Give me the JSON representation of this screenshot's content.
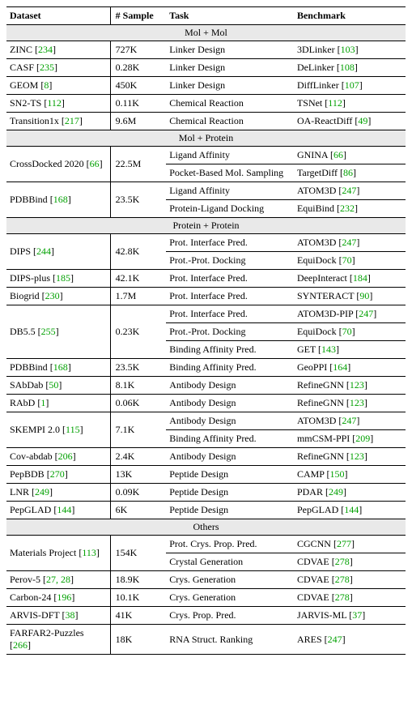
{
  "headers": {
    "dataset": "Dataset",
    "sample": "# Sample",
    "task": "Task",
    "benchmark": "Benchmark"
  },
  "sections": [
    {
      "title": "Mol + Mol",
      "rows": [
        {
          "dataset": "ZINC",
          "dcite": "234",
          "sample": "727K",
          "cells": [
            {
              "task": "Linker Design",
              "bench": "3DLinker",
              "bcite": "103"
            }
          ]
        },
        {
          "dataset": "CASF",
          "dcite": "235",
          "sample": "0.28K",
          "cells": [
            {
              "task": "Linker Design",
              "bench": "DeLinker",
              "bcite": "108"
            }
          ]
        },
        {
          "dataset": "GEOM",
          "dcite": "8",
          "sample": "450K",
          "cells": [
            {
              "task": "Linker Design",
              "bench": "DiffLinker",
              "bcite": "107"
            }
          ]
        },
        {
          "dataset": "SN2-TS",
          "dcite": "112",
          "sample": "0.11K",
          "cells": [
            {
              "task": "Chemical Reaction",
              "bench": "TSNet",
              "bcite": "112"
            }
          ]
        },
        {
          "dataset": "Transition1x",
          "dcite": "217",
          "sample": "9.6M",
          "cells": [
            {
              "task": "Chemical Reaction",
              "bench": "OA-ReactDiff",
              "bcite": "49"
            }
          ]
        }
      ]
    },
    {
      "title": "Mol + Protein",
      "rows": [
        {
          "dataset": "CrossDocked 2020",
          "dcite": "66",
          "sample": "22.5M",
          "cells": [
            {
              "task": "Ligand Affinity",
              "bench": "GNINA",
              "bcite": "66"
            },
            {
              "task": "Pocket-Based Mol. Sampling",
              "bench": "TargetDiff",
              "bcite": "86"
            }
          ]
        },
        {
          "dataset": "PDBBind",
          "dcite": "168",
          "sample": "23.5K",
          "cells": [
            {
              "task": "Ligand Affinity",
              "bench": "ATOM3D",
              "bcite": "247"
            },
            {
              "task": "Protein-Ligand Docking",
              "bench": "EquiBind",
              "bcite": "232"
            }
          ]
        }
      ]
    },
    {
      "title": "Protein + Protein",
      "rows": [
        {
          "dataset": "DIPS",
          "dcite": "244",
          "sample": "42.8K",
          "cells": [
            {
              "task": "Prot. Interface Pred.",
              "bench": "ATOM3D",
              "bcite": "247"
            },
            {
              "task": "Prot.-Prot. Docking",
              "bench": "EquiDock",
              "bcite": "70"
            }
          ]
        },
        {
          "dataset": "DIPS-plus",
          "dcite": "185",
          "sample": "42.1K",
          "cells": [
            {
              "task": "Prot. Interface Pred.",
              "bench": "DeepInteract",
              "bcite": "184"
            }
          ]
        },
        {
          "dataset": "Biogrid",
          "dcite": "230",
          "sample": "1.7M",
          "cells": [
            {
              "task": "Prot. Interface Pred.",
              "bench": "SYNTERACT",
              "bcite": "90"
            }
          ]
        },
        {
          "dataset": "DB5.5",
          "dcite": "255",
          "sample": "0.23K",
          "cells": [
            {
              "task": "Prot. Interface Pred.",
              "bench": "ATOM3D-PIP",
              "bcite": "247"
            },
            {
              "task": "Prot.-Prot. Docking",
              "bench": "EquiDock",
              "bcite": "70"
            },
            {
              "task": "Binding Affinity Pred.",
              "bench": "GET",
              "bcite": "143"
            }
          ]
        },
        {
          "dataset": "PDBBind",
          "dcite": "168",
          "sample": "23.5K",
          "cells": [
            {
              "task": "Binding Affinity Pred.",
              "bench": "GeoPPI",
              "bcite": "164"
            }
          ]
        },
        {
          "dataset": "SAbDab",
          "dcite": "50",
          "sample": "8.1K",
          "cells": [
            {
              "task": "Antibody Design",
              "bench": "RefineGNN",
              "bcite": "123"
            }
          ]
        },
        {
          "dataset": "RAbD",
          "dcite": "1",
          "sample": "0.06K",
          "cells": [
            {
              "task": "Antibody Design",
              "bench": "RefineGNN",
              "bcite": "123"
            }
          ]
        },
        {
          "dataset": "SKEMPI 2.0",
          "dcite": "115",
          "sample": "7.1K",
          "cells": [
            {
              "task": "Antibody Design",
              "bench": "ATOM3D",
              "bcite": "247"
            },
            {
              "task": "Binding Affinity Pred.",
              "bench": "mmCSM-PPI",
              "bcite": "209"
            }
          ]
        },
        {
          "dataset": "Cov-abdab",
          "dcite": "206",
          "sample": "2.4K",
          "cells": [
            {
              "task": "Antibody Design",
              "bench": "RefineGNN",
              "bcite": "123"
            }
          ]
        },
        {
          "dataset": "PepBDB",
          "dcite": "270",
          "sample": "13K",
          "cells": [
            {
              "task": "Peptide Design",
              "bench": "CAMP",
              "bcite": "150"
            }
          ]
        },
        {
          "dataset": "LNR",
          "dcite": "249",
          "sample": "0.09K",
          "cells": [
            {
              "task": "Peptide Design",
              "bench": "PDAR",
              "bcite": "249"
            }
          ]
        },
        {
          "dataset": "PepGLAD",
          "dcite": "144",
          "sample": "6K",
          "cells": [
            {
              "task": "Peptide Design",
              "bench": "PepGLAD",
              "bcite": "144"
            }
          ]
        }
      ]
    },
    {
      "title": "Others",
      "rows": [
        {
          "dataset": "Materials Project",
          "dcite": "113",
          "sample": "154K",
          "cells": [
            {
              "task": "Prot. Crys. Prop. Pred.",
              "bench": "CGCNN",
              "bcite": "277"
            },
            {
              "task": "Crystal Generation",
              "bench": "CDVAE",
              "bcite": "278"
            }
          ]
        },
        {
          "dataset": "Perov-5",
          "dcite": "27, 28",
          "sample": "18.9K",
          "cells": [
            {
              "task": "Crys. Generation",
              "bench": "CDVAE",
              "bcite": "278"
            }
          ]
        },
        {
          "dataset": "Carbon-24",
          "dcite": "196",
          "sample": "10.1K",
          "cells": [
            {
              "task": "Crys. Generation",
              "bench": "CDVAE",
              "bcite": "278"
            }
          ]
        },
        {
          "dataset": "ARVIS-DFT",
          "dcite": "38",
          "sample": "41K",
          "cells": [
            {
              "task": "Crys. Prop. Pred.",
              "bench": "JARVIS-ML",
              "bcite": "37"
            }
          ]
        },
        {
          "dataset": "FARFAR2-Puzzles",
          "dcite": "266",
          "sample": "18K",
          "cells": [
            {
              "task": "RNA Struct. Ranking",
              "bench": "ARES",
              "bcite": "247"
            }
          ]
        }
      ]
    }
  ]
}
